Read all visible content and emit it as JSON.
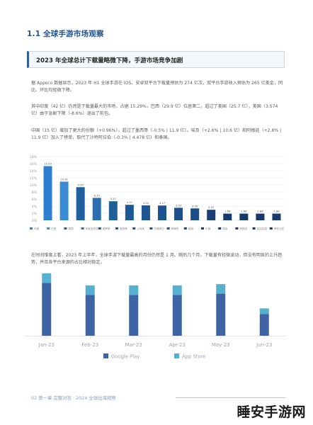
{
  "section_title": "1.1 全球手游市场观察",
  "banner_title": "2023 年全球总计下载量略微下降，手游市场竞争加剧",
  "paragraphs": [
    "据 Appsco 数据显示，2023 年 H1 全球手游在 iOS、安卓双平台下载量预估为 274 亿次，双平台手游收入预估为 265 亿美金，同比、环比均轻微下降。",
    "其中印度（42 亿）仍然是下载量最大的市场，占据 15.29%，巴西（29.9 亿）位居第二，超过了美国（25.7 亿），美国（3.574 亿）由于急剧下降（-8.6%）退出了前包。",
    "中国（15 亿）增加了更大的份额（+0.96%），超过了墨西哥（-0.5% | 11.9 亿）。埃及（+2.6% | 10.6 亿）和阿根廷（+2.8% | 11.9 亿）加入了榜单，取代了沙特阿拉伯（-0.3% | 4.478 亿）和泰国。",
    "在时间维度上看，2023 年上半年，全球手游下载量最高的月份仍然是 1 月。随后几个月，下载量有轻微波动，但没有明显的上升趋势，并且各平台来源的占比相对稳定。"
  ],
  "chart_data": [
    {
      "type": "bar",
      "categories": [
        "印度",
        "巴西",
        "美国",
        "印度尼西亚",
        "俄罗斯",
        "墨西哥",
        "土耳其",
        "巴基斯坦",
        "菲律宾",
        "越南",
        "中国",
        "埃及",
        "阿根廷",
        "孟加拉国",
        "哥伦比亚"
      ],
      "values": [
        15.29,
        10.91,
        9.35,
        6.33,
        5.37,
        4.37,
        4.22,
        4.17,
        3.53,
        3.35,
        2.97,
        1.88,
        1.88,
        1.88,
        1.88
      ],
      "data_labels": [
        "15.29",
        "10.91",
        "9.35",
        "6.33",
        "5.37",
        "4.37",
        "4.22",
        "4.17",
        "3.53",
        "3.35",
        "2.97",
        "1.88",
        "1.88",
        "1.88",
        "1.88"
      ],
      "y_ticks": [
        "0%",
        "2%",
        "4%",
        "6%",
        "8%",
        "10%",
        "12%",
        "14%",
        "16%",
        "18%"
      ],
      "ylim": [
        0,
        18
      ],
      "grid": true,
      "legend": "bottom",
      "colors": [
        "#2f7fd1",
        "#3a8bd6",
        "#1f5f9f",
        "#2a6fb5",
        "#215f9a",
        "#1f5896",
        "#1f5592",
        "#1d5290",
        "#1d4f8c",
        "#1b4c88",
        "#193f74",
        "#173a6c",
        "#173a6c",
        "#173a6c",
        "#173a6c"
      ]
    },
    {
      "type": "bar",
      "stacked": true,
      "categories": [
        "Jan-23",
        "Feb-23",
        "Mar-23",
        "Apr-23",
        "May-23",
        "Jun-23"
      ],
      "series": [
        {
          "name": "Google Play",
          "values": [
            83,
            64,
            64,
            64,
            66,
            34
          ],
          "color": "#3f64a6"
        },
        {
          "name": "App Store",
          "values": [
            15,
            15,
            15,
            15,
            15,
            9
          ],
          "color": "#55b1cf"
        }
      ],
      "ylim": [
        0,
        100
      ],
      "grid": false,
      "legend": "bottom"
    }
  ],
  "footer": "02    第一章  完整对答 · 2024 全球出海观察",
  "watermark": "睡安手游网"
}
